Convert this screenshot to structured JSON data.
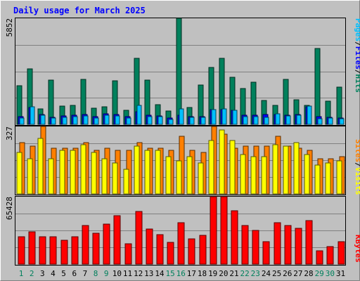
{
  "title": "Daily usage for March 2025",
  "colors": {
    "background": "#c0c0c0",
    "title": "#0000ff",
    "plot_border": "#000000",
    "gridline": "#808080",
    "hits": "#00805c",
    "files": "#0000ff",
    "pages": "#00c0ff",
    "visits": "#ffff00",
    "sites": "#ff8000",
    "kbytes": "#ff0000",
    "day_weekday": "#000000",
    "day_weekend": "#00805c"
  },
  "panels": {
    "top": {
      "max_label": "5852",
      "legend": [
        "Pages",
        "/",
        "Files",
        "/",
        "Hits"
      ]
    },
    "middle": {
      "max_label": "327",
      "legend": [
        "Sites",
        "/",
        "Visits"
      ]
    },
    "bottom": {
      "max_label": "65428",
      "legend": [
        "KBytes"
      ]
    }
  },
  "chart_data": [
    {
      "type": "bar",
      "title": "Daily usage for March 2025",
      "categories": [
        "1",
        "2",
        "3",
        "4",
        "5",
        "6",
        "7",
        "8",
        "9",
        "10",
        "11",
        "12",
        "13",
        "14",
        "15",
        "16",
        "17",
        "18",
        "19",
        "20",
        "21",
        "22",
        "23",
        "24",
        "25",
        "26",
        "27",
        "28",
        "29",
        "30",
        "31"
      ],
      "weekend_days": [
        "1",
        "2",
        "8",
        "9",
        "15",
        "16",
        "22",
        "23",
        "29",
        "30"
      ],
      "ylim": [
        0,
        5852
      ],
      "grid": true,
      "series": [
        {
          "name": "Hits",
          "values": [
            2150,
            3050,
            870,
            2440,
            990,
            1030,
            2470,
            880,
            960,
            2420,
            790,
            3650,
            2430,
            1100,
            730,
            5852,
            920,
            2170,
            3120,
            3630,
            2600,
            1980,
            2310,
            1300,
            1050,
            2470,
            1350,
            1030,
            4170,
            1280,
            2040
          ]
        },
        {
          "name": "Files",
          "values": [
            410,
            920,
            560,
            390,
            460,
            500,
            550,
            430,
            590,
            560,
            420,
            700,
            500,
            470,
            360,
            510,
            420,
            430,
            800,
            830,
            770,
            510,
            500,
            560,
            530,
            520,
            550,
            960,
            440,
            390,
            340
          ]
        },
        {
          "name": "Pages",
          "values": [
            350,
            980,
            500,
            340,
            400,
            410,
            480,
            360,
            520,
            480,
            360,
            1040,
            440,
            420,
            290,
            870,
            380,
            380,
            820,
            870,
            790,
            440,
            440,
            380,
            600,
            450,
            520,
            1010,
            320,
            340,
            310
          ]
        }
      ]
    },
    {
      "type": "bar",
      "categories": [
        "1",
        "2",
        "3",
        "4",
        "5",
        "6",
        "7",
        "8",
        "9",
        "10",
        "11",
        "12",
        "13",
        "14",
        "15",
        "16",
        "17",
        "18",
        "19",
        "20",
        "21",
        "22",
        "23",
        "24",
        "25",
        "26",
        "27",
        "28",
        "29",
        "30",
        "31"
      ],
      "ylim": [
        0,
        327
      ],
      "grid": true,
      "series": [
        {
          "name": "Sites",
          "values": [
            250,
            230,
            327,
            220,
            220,
            220,
            250,
            210,
            220,
            210,
            210,
            250,
            220,
            220,
            210,
            280,
            210,
            200,
            330,
            290,
            220,
            230,
            230,
            230,
            280,
            230,
            220,
            210,
            170,
            170,
            180
          ]
        },
        {
          "name": "Visits",
          "values": [
            200,
            170,
            270,
            170,
            210,
            210,
            240,
            200,
            170,
            150,
            120,
            230,
            210,
            210,
            180,
            160,
            180,
            150,
            260,
            310,
            260,
            190,
            180,
            180,
            240,
            230,
            250,
            190,
            140,
            150,
            160
          ]
        }
      ]
    },
    {
      "type": "bar",
      "categories": [
        "1",
        "2",
        "3",
        "4",
        "5",
        "6",
        "7",
        "8",
        "9",
        "10",
        "11",
        "12",
        "13",
        "14",
        "15",
        "16",
        "17",
        "18",
        "19",
        "20",
        "21",
        "22",
        "23",
        "24",
        "25",
        "26",
        "27",
        "28",
        "29",
        "30",
        "31"
      ],
      "ylim": [
        0,
        65428
      ],
      "grid": true,
      "series": [
        {
          "name": "KBytes",
          "values": [
            26500,
            31600,
            26500,
            26500,
            22900,
            26500,
            37200,
            30300,
            38800,
            47000,
            19600,
            51100,
            34100,
            28300,
            21300,
            40000,
            24800,
            27700,
            65428,
            65428,
            52000,
            37800,
            32500,
            21800,
            40300,
            37600,
            34700,
            42300,
            13000,
            17200,
            22100
          ]
        }
      ]
    }
  ]
}
